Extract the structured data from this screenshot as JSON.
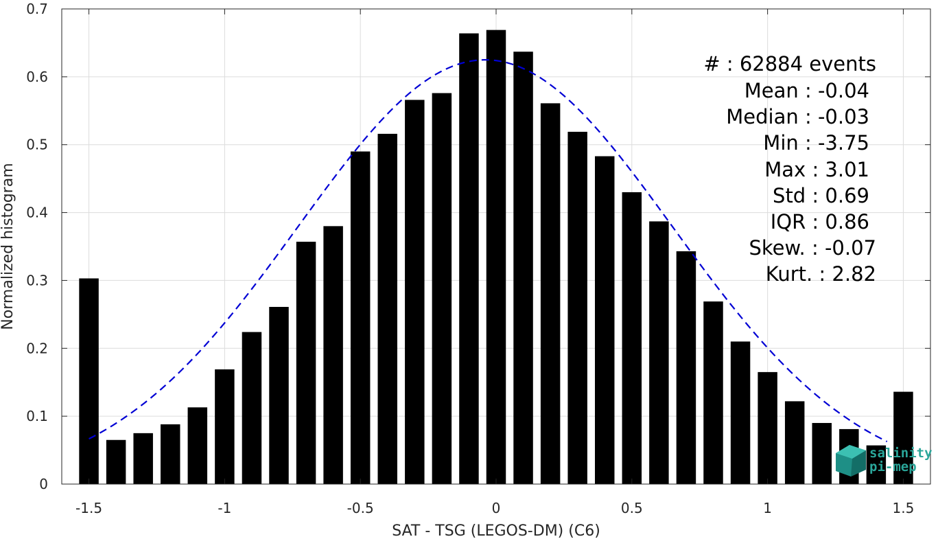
{
  "chart_data": {
    "type": "bar",
    "title": "",
    "xlabel": "SAT - TSG (LEGOS-DM) (C6)",
    "ylabel": "Normalized histogram",
    "xlim": [
      -1.6,
      1.6
    ],
    "ylim": [
      0,
      0.7
    ],
    "grid": true,
    "x": [
      -1.5,
      -1.4,
      -1.3,
      -1.2,
      -1.1,
      -1.0,
      -0.9,
      -0.8,
      -0.7,
      -0.6,
      -0.5,
      -0.4,
      -0.3,
      -0.2,
      -0.1,
      0.0,
      0.1,
      0.2,
      0.3,
      0.4,
      0.5,
      0.6,
      0.7,
      0.8,
      0.9,
      1.0,
      1.1,
      1.2,
      1.3,
      1.4,
      1.5
    ],
    "values": [
      0.303,
      0.065,
      0.075,
      0.088,
      0.113,
      0.169,
      0.224,
      0.261,
      0.357,
      0.38,
      0.49,
      0.516,
      0.566,
      0.576,
      0.664,
      0.669,
      0.637,
      0.561,
      0.519,
      0.483,
      0.43,
      0.387,
      0.343,
      0.269,
      0.21,
      0.165,
      0.122,
      0.09,
      0.081,
      0.057,
      0.136
    ],
    "fit_curve": {
      "type": "gaussian",
      "mean": -0.04,
      "std": 0.69,
      "peak": 0.625,
      "x_range": [
        -1.5,
        1.44
      ],
      "color": "#0000d4",
      "style": "dashed"
    },
    "xticks": [
      "-1.5",
      "-1",
      "-0.5",
      "0",
      "0.5",
      "1",
      "1.5"
    ],
    "yticks": [
      "0",
      "0.1",
      "0.2",
      "0.3",
      "0.4",
      "0.5",
      "0.6",
      "0.7"
    ],
    "bar_color": "#000000"
  },
  "stats": [
    "#  : 62884 events",
    "Mean : -0.04",
    "Median : -0.03",
    "Min : -3.75",
    "Max : 3.01",
    "Std : 0.69",
    "IQR : 0.86",
    "Skew. : -0.07",
    "Kurt. : 2.82"
  ],
  "logo": {
    "line1": "salinity",
    "line2": "pi-mep",
    "color": "#2aa69a"
  }
}
